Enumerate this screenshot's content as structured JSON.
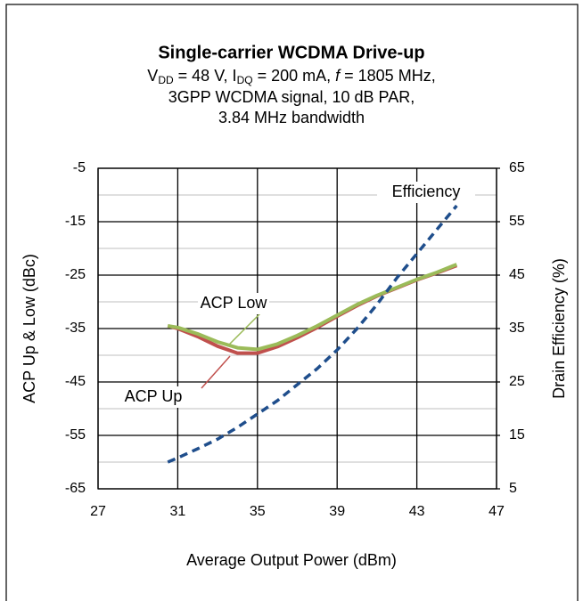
{
  "chart_data": {
    "type": "line",
    "title": "Single-carrier WCDMA Drive-up",
    "subtitle": [
      [
        "V",
        "DD",
        " = 48 V, I",
        "DQ",
        " = 200 mA, ",
        "f",
        " = 1805 MHz,"
      ],
      "3GPP WCDMA signal, 10 dB PAR,",
      "3.84 MHz bandwidth"
    ],
    "x_label": "Average Output Power (dBm)",
    "y_label": "ACP Up & Low (dBc)",
    "y2_label": "Drain Efficiency (%)",
    "xlim": [
      27,
      47
    ],
    "xticks": [
      27,
      31,
      35,
      39,
      43,
      47
    ],
    "ylim": [
      -65,
      -5
    ],
    "yticks": [
      -5,
      -15,
      -25,
      -35,
      -45,
      -55,
      -65
    ],
    "y2lim": [
      5,
      65
    ],
    "y2ticks": [
      65,
      55,
      45,
      35,
      25,
      15,
      5
    ],
    "grid": true,
    "x": [
      30.5,
      31,
      32,
      33,
      34,
      35,
      36,
      37,
      38,
      39,
      40,
      41,
      42,
      43,
      44,
      45
    ],
    "series": [
      {
        "name": "ACP Up",
        "color": "#c0504d",
        "values": [
          -34.5,
          -35,
          -36.5,
          -38.3,
          -39.6,
          -39.6,
          -38.4,
          -36.7,
          -34.8,
          -32.7,
          -30.7,
          -28.9,
          -27.4,
          -25.9,
          -24.6,
          -23.2
        ]
      },
      {
        "name": "ACP Low",
        "color": "#9bbb59",
        "values": [
          -34.5,
          -34.8,
          -36,
          -37.5,
          -38.6,
          -38.9,
          -37.9,
          -36.3,
          -34.5,
          -32.5,
          -30.5,
          -28.8,
          -27.3,
          -25.8,
          -24.5,
          -23
        ]
      },
      {
        "name": "Efficiency",
        "color": "#1f4e8c",
        "axis": "y2",
        "dashed": true,
        "values": [
          10,
          10.8,
          12.5,
          14.3,
          16.5,
          19,
          21.5,
          24.5,
          27.5,
          31,
          35,
          39.5,
          44.5,
          49,
          53.5,
          58
        ]
      }
    ]
  }
}
